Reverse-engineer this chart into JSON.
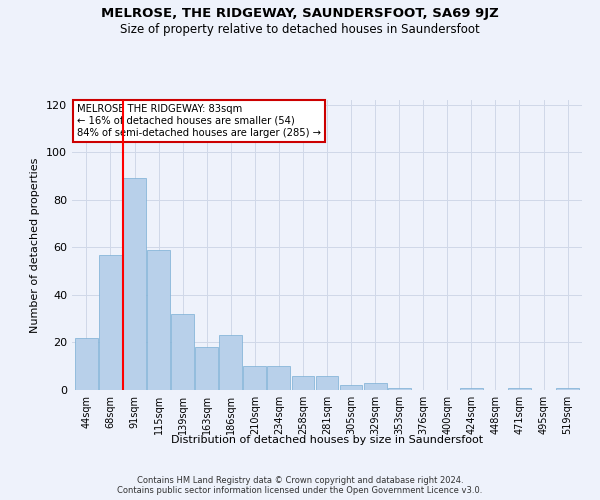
{
  "title": "MELROSE, THE RIDGEWAY, SAUNDERSFOOT, SA69 9JZ",
  "subtitle": "Size of property relative to detached houses in Saundersfoot",
  "xlabel": "Distribution of detached houses by size in Saundersfoot",
  "ylabel": "Number of detached properties",
  "categories": [
    "44sqm",
    "68sqm",
    "91sqm",
    "115sqm",
    "139sqm",
    "163sqm",
    "186sqm",
    "210sqm",
    "234sqm",
    "258sqm",
    "281sqm",
    "305sqm",
    "329sqm",
    "353sqm",
    "376sqm",
    "400sqm",
    "424sqm",
    "448sqm",
    "471sqm",
    "495sqm",
    "519sqm"
  ],
  "values": [
    22,
    57,
    89,
    59,
    32,
    18,
    23,
    10,
    10,
    6,
    6,
    2,
    3,
    1,
    0,
    0,
    1,
    0,
    1,
    0,
    1
  ],
  "bar_color": "#b8d0ea",
  "bar_edge_color": "#7aafd4",
  "grid_color": "#d0d8e8",
  "property_sqm": 83,
  "property_name": "MELROSE THE RIDGEWAY",
  "pct_smaller": 16,
  "count_smaller": 54,
  "pct_larger_semi": 84,
  "count_larger_semi": 285,
  "vline_x": 1.5,
  "annotation_box_color": "#ffffff",
  "annotation_box_edge_color": "#cc0000",
  "ylim": [
    0,
    122
  ],
  "yticks": [
    0,
    20,
    40,
    60,
    80,
    100,
    120
  ],
  "footer_text": "Contains HM Land Registry data © Crown copyright and database right 2024.\nContains public sector information licensed under the Open Government Licence v3.0.",
  "bg_color": "#eef2fb"
}
